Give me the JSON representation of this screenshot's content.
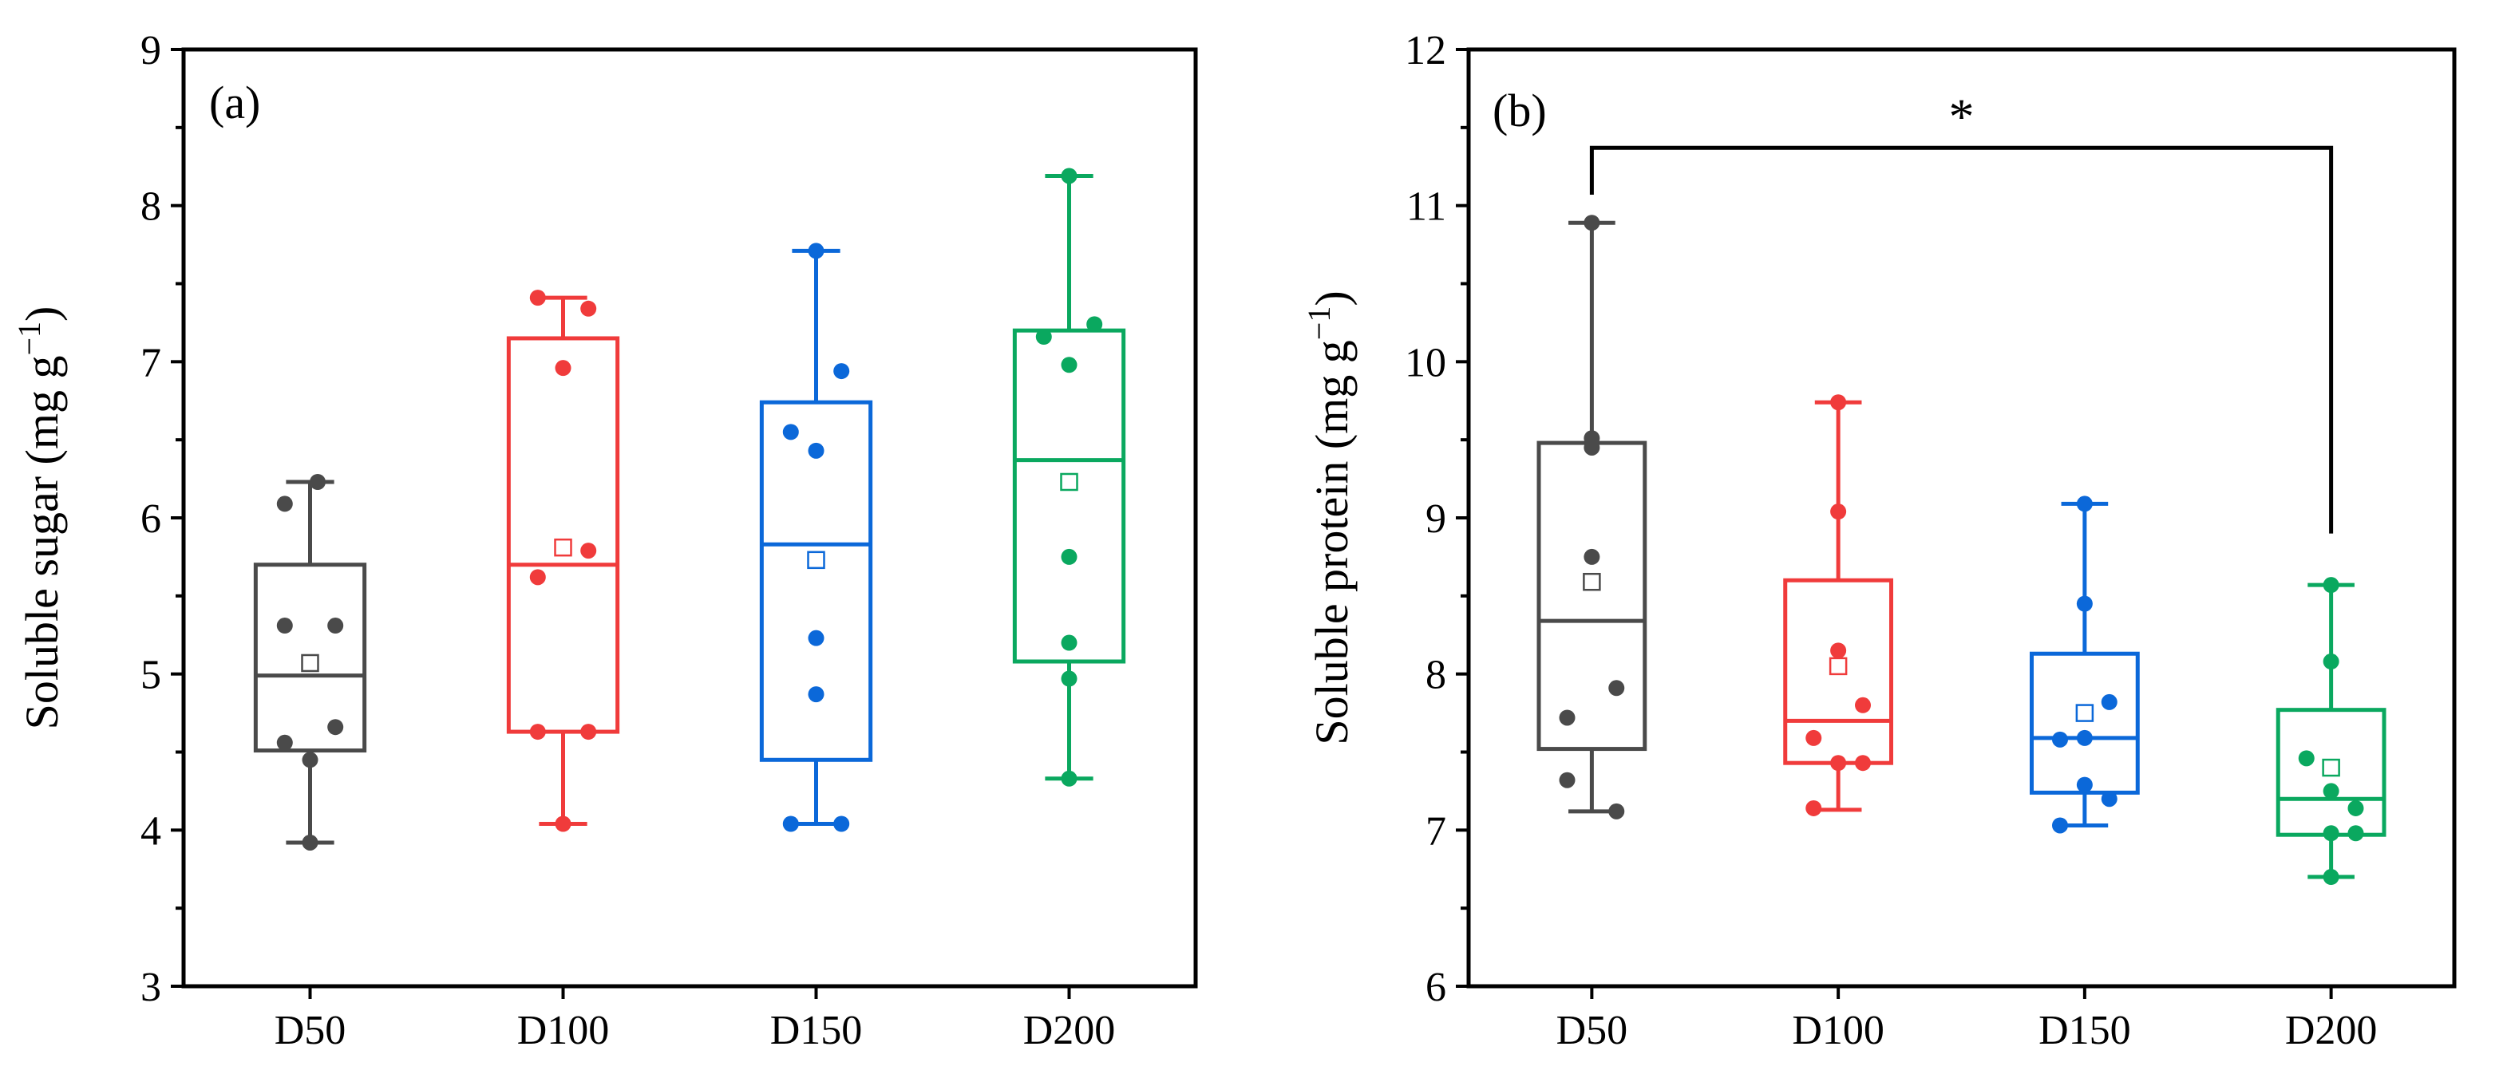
{
  "chart_data": [
    {
      "panel": "(a)",
      "type": "box",
      "ylabel": "Soluble sugar (mg g",
      "ylabel_sup": "−1",
      "ylabel_close": ")",
      "ylim": [
        3,
        9
      ],
      "yticks": [
        "3",
        "4",
        "5",
        "6",
        "7",
        "8",
        "9"
      ],
      "categories": [
        "D50",
        "D100",
        "D150",
        "D200"
      ],
      "groups": [
        {
          "name": "D50",
          "color": "#4a4a4a",
          "min": 3.92,
          "q1": 4.51,
          "median": 4.99,
          "q3": 5.7,
          "max": 6.23,
          "mean": 5.07,
          "points": [
            [
              0.03,
              6.23
            ],
            [
              -0.1,
              6.09
            ],
            [
              -0.1,
              5.31
            ],
            [
              0.1,
              5.31
            ],
            [
              0.1,
              4.66
            ],
            [
              -0.1,
              4.56
            ],
            [
              0.0,
              4.45
            ],
            [
              0.0,
              3.92
            ]
          ]
        },
        {
          "name": "D100",
          "color": "#f03b3b",
          "min": 4.04,
          "q1": 4.63,
          "median": 5.7,
          "q3": 7.15,
          "max": 7.41,
          "mean": 5.81,
          "points": [
            [
              -0.1,
              7.41
            ],
            [
              0.1,
              7.34
            ],
            [
              0.0,
              6.96
            ],
            [
              0.1,
              5.79
            ],
            [
              -0.1,
              5.62
            ],
            [
              -0.1,
              4.63
            ],
            [
              0.1,
              4.63
            ],
            [
              0.0,
              4.04
            ]
          ]
        },
        {
          "name": "D150",
          "color": "#0b68d9",
          "min": 4.04,
          "q1": 4.45,
          "median": 5.83,
          "q3": 6.74,
          "max": 7.71,
          "mean": 5.73,
          "points": [
            [
              0.0,
              7.71
            ],
            [
              0.1,
              6.94
            ],
            [
              -0.1,
              6.55
            ],
            [
              0.0,
              6.43
            ],
            [
              0.0,
              5.23
            ],
            [
              0.0,
              4.87
            ],
            [
              -0.1,
              4.04
            ],
            [
              0.1,
              4.04
            ]
          ]
        },
        {
          "name": "D200",
          "color": "#0aa85f",
          "min": 4.33,
          "q1": 5.08,
          "median": 6.37,
          "q3": 7.2,
          "max": 8.19,
          "mean": 6.23,
          "points": [
            [
              0.0,
              8.19
            ],
            [
              0.1,
              7.24
            ],
            [
              -0.1,
              7.16
            ],
            [
              0.0,
              6.98
            ],
            [
              0.0,
              5.75
            ],
            [
              0.0,
              5.2
            ],
            [
              0.0,
              4.97
            ],
            [
              0.0,
              4.33
            ]
          ]
        }
      ]
    },
    {
      "panel": "(b)",
      "type": "box",
      "ylabel": "Soluble protein (mg g",
      "ylabel_sup": "−1",
      "ylabel_close": ")",
      "ylim": [
        6,
        12
      ],
      "yticks": [
        "6",
        "7",
        "8",
        "9",
        "10",
        "11",
        "12"
      ],
      "categories": [
        "D50",
        "D100",
        "D150",
        "D200"
      ],
      "significance": {
        "from": "D50",
        "to": "D200",
        "label": "*"
      },
      "groups": [
        {
          "name": "D50",
          "color": "#4a4a4a",
          "min": 7.12,
          "q1": 7.52,
          "median": 8.34,
          "q3": 9.48,
          "max": 10.89,
          "mean": 8.59,
          "points": [
            [
              0.0,
              10.89
            ],
            [
              0.0,
              9.51
            ],
            [
              0.0,
              9.45
            ],
            [
              0.0,
              8.75
            ],
            [
              0.1,
              7.91
            ],
            [
              -0.1,
              7.72
            ],
            [
              -0.1,
              7.32
            ],
            [
              0.1,
              7.12
            ]
          ]
        },
        {
          "name": "D100",
          "color": "#f03b3b",
          "min": 7.13,
          "q1": 7.43,
          "median": 7.7,
          "q3": 8.6,
          "max": 9.74,
          "mean": 8.05,
          "points": [
            [
              0.0,
              9.74
            ],
            [
              0.0,
              9.04
            ],
            [
              0.0,
              8.15
            ],
            [
              0.1,
              7.8
            ],
            [
              -0.1,
              7.59
            ],
            [
              0.0,
              7.43
            ],
            [
              0.1,
              7.43
            ],
            [
              -0.1,
              7.14
            ]
          ]
        },
        {
          "name": "D150",
          "color": "#0b68d9",
          "min": 7.03,
          "q1": 7.24,
          "median": 7.59,
          "q3": 8.13,
          "max": 9.09,
          "mean": 7.75,
          "points": [
            [
              0.0,
              9.09
            ],
            [
              0.0,
              8.45
            ],
            [
              0.1,
              7.82
            ],
            [
              -0.1,
              7.58
            ],
            [
              0.0,
              7.59
            ],
            [
              0.0,
              7.29
            ],
            [
              0.1,
              7.2
            ],
            [
              -0.1,
              7.03
            ]
          ]
        },
        {
          "name": "D200",
          "color": "#0aa85f",
          "min": 6.7,
          "q1": 6.97,
          "median": 7.2,
          "q3": 7.77,
          "max": 8.57,
          "mean": 7.4,
          "points": [
            [
              0.0,
              8.57
            ],
            [
              0.0,
              8.08
            ],
            [
              -0.1,
              7.46
            ],
            [
              0.0,
              7.25
            ],
            [
              0.1,
              7.14
            ],
            [
              0.0,
              6.98
            ],
            [
              0.1,
              6.98
            ],
            [
              0.0,
              6.7
            ]
          ]
        }
      ]
    }
  ]
}
